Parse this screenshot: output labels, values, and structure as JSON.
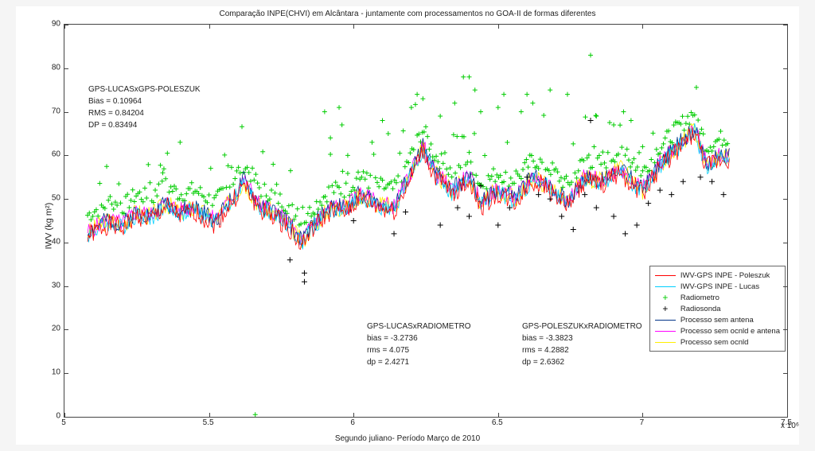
{
  "title": "Comparação INPE(CHVI) em Alcântara - juntamente com processamentos no GOA-II de formas diferentes",
  "ylabel": "IWV (kg m²)",
  "xlabel": "Segundo juliano- Período Março de 2010",
  "xexp": "x 10⁶",
  "ylim": [
    0,
    90
  ],
  "xlim": [
    5.0,
    7.5
  ],
  "yticks": [
    0,
    10,
    20,
    30,
    40,
    50,
    60,
    70,
    80,
    90
  ],
  "xticks": [
    5.0,
    5.5,
    6.0,
    6.5,
    7.0,
    7.5
  ],
  "xtick_labels": [
    "5",
    "5.5",
    "6",
    "6.5",
    "7",
    "7.5"
  ],
  "background_color": "#ffffff",
  "grid_color": "#e0e0e0",
  "stats1": {
    "heading": "GPS-LUCASxGPS-POLESZUK",
    "l1": "Bias = 0.10964",
    "l2": "RMS = 0.84204",
    "l3": "DP = 0.83494"
  },
  "stats2": {
    "heading": "GPS-LUCASxRADIOMETRO",
    "l1": "bias = -3.2736",
    "l2": "rms = 4.075",
    "l3": "dp = 2.4271"
  },
  "stats3": {
    "heading": "GPS-POLESZUKxRADIOMETRO",
    "l1": "bias = -3.3823",
    "l2": "rms = 4.2882",
    "l3": "dp = 2.6362"
  },
  "legend": [
    {
      "label": "IWV-GPS INPE - Poleszuk",
      "type": "line",
      "color": "#ff0000"
    },
    {
      "label": "IWV-GPS INPE - Lucas",
      "type": "line",
      "color": "#00cfff"
    },
    {
      "label": "Radiometro",
      "type": "marker",
      "marker": "+",
      "color": "#00cc00"
    },
    {
      "label": "Radiosonda",
      "type": "marker",
      "marker": "+",
      "color": "#000000"
    },
    {
      "label": "Processo sem antena",
      "type": "line",
      "color": "#003388"
    },
    {
      "label": "Processo sem ocnld e antena",
      "type": "line",
      "color": "#ff00ff"
    },
    {
      "label": "Processo sem ocnld",
      "type": "line",
      "color": "#ffee00"
    }
  ],
  "series_colors": {
    "poleszuk": "#ff0000",
    "lucas": "#00cfff",
    "radiometro": "#00cc00",
    "radiosonda": "#000000",
    "sem_antena": "#003388",
    "sem_ocnld_antena": "#ff00ff",
    "sem_ocnld": "#ffee00"
  },
  "baseline": [
    [
      5.1,
      43
    ],
    [
      5.15,
      45
    ],
    [
      5.2,
      44
    ],
    [
      5.25,
      47
    ],
    [
      5.3,
      46
    ],
    [
      5.35,
      49
    ],
    [
      5.4,
      47
    ],
    [
      5.45,
      48
    ],
    [
      5.52,
      45
    ],
    [
      5.58,
      50
    ],
    [
      5.62,
      54
    ],
    [
      5.68,
      48
    ],
    [
      5.72,
      47
    ],
    [
      5.78,
      44
    ],
    [
      5.82,
      40
    ],
    [
      5.86,
      44
    ],
    [
      5.92,
      48
    ],
    [
      5.98,
      48
    ],
    [
      6.02,
      51
    ],
    [
      6.08,
      49
    ],
    [
      6.14,
      48
    ],
    [
      6.2,
      56
    ],
    [
      6.24,
      62
    ],
    [
      6.28,
      56
    ],
    [
      6.34,
      52
    ],
    [
      6.4,
      55
    ],
    [
      6.44,
      49
    ],
    [
      6.5,
      52
    ],
    [
      6.56,
      50
    ],
    [
      6.62,
      55
    ],
    [
      6.68,
      53
    ],
    [
      6.74,
      49
    ],
    [
      6.8,
      55
    ],
    [
      6.86,
      54
    ],
    [
      6.92,
      57
    ],
    [
      7.0,
      52
    ],
    [
      7.06,
      58
    ],
    [
      7.12,
      62
    ],
    [
      7.18,
      66
    ],
    [
      7.22,
      58
    ],
    [
      7.28,
      60
    ]
  ],
  "radiometro_offset": 3.3,
  "radiosonda_points": [
    [
      5.83,
      33
    ],
    [
      5.83,
      31
    ],
    [
      5.78,
      36
    ],
    [
      6.0,
      45
    ],
    [
      6.14,
      42
    ],
    [
      6.18,
      47
    ],
    [
      6.3,
      44
    ],
    [
      6.36,
      48
    ],
    [
      6.4,
      46
    ],
    [
      6.44,
      53
    ],
    [
      6.5,
      44
    ],
    [
      6.54,
      48
    ],
    [
      6.6,
      55
    ],
    [
      6.64,
      51
    ],
    [
      6.68,
      50
    ],
    [
      6.72,
      46
    ],
    [
      6.76,
      43
    ],
    [
      6.8,
      51
    ],
    [
      6.82,
      68
    ],
    [
      6.84,
      48
    ],
    [
      6.9,
      46
    ],
    [
      6.94,
      42
    ],
    [
      6.98,
      44
    ],
    [
      7.02,
      49
    ],
    [
      7.06,
      52
    ],
    [
      7.1,
      51
    ],
    [
      7.14,
      54
    ],
    [
      7.2,
      55
    ],
    [
      7.24,
      54
    ],
    [
      7.28,
      51
    ]
  ],
  "radiometro_outliers": [
    [
      5.34,
      56
    ],
    [
      5.4,
      63
    ],
    [
      5.9,
      70
    ],
    [
      5.95,
      71
    ],
    [
      5.96,
      67
    ],
    [
      5.92,
      64
    ],
    [
      5.98,
      60
    ],
    [
      6.1,
      68
    ],
    [
      6.12,
      65
    ],
    [
      6.2,
      71
    ],
    [
      6.22,
      74
    ],
    [
      6.24,
      73
    ],
    [
      6.3,
      69
    ],
    [
      6.35,
      72
    ],
    [
      6.38,
      78
    ],
    [
      6.4,
      78
    ],
    [
      6.42,
      75
    ],
    [
      6.44,
      70
    ],
    [
      6.5,
      71
    ],
    [
      6.52,
      74
    ],
    [
      6.58,
      70
    ],
    [
      6.6,
      74
    ],
    [
      6.62,
      72
    ],
    [
      6.68,
      75
    ],
    [
      6.74,
      74
    ],
    [
      6.82,
      83
    ],
    [
      6.84,
      69
    ],
    [
      6.9,
      67
    ],
    [
      6.96,
      68
    ],
    [
      7.0,
      62
    ],
    [
      5.66,
      0.5
    ]
  ]
}
